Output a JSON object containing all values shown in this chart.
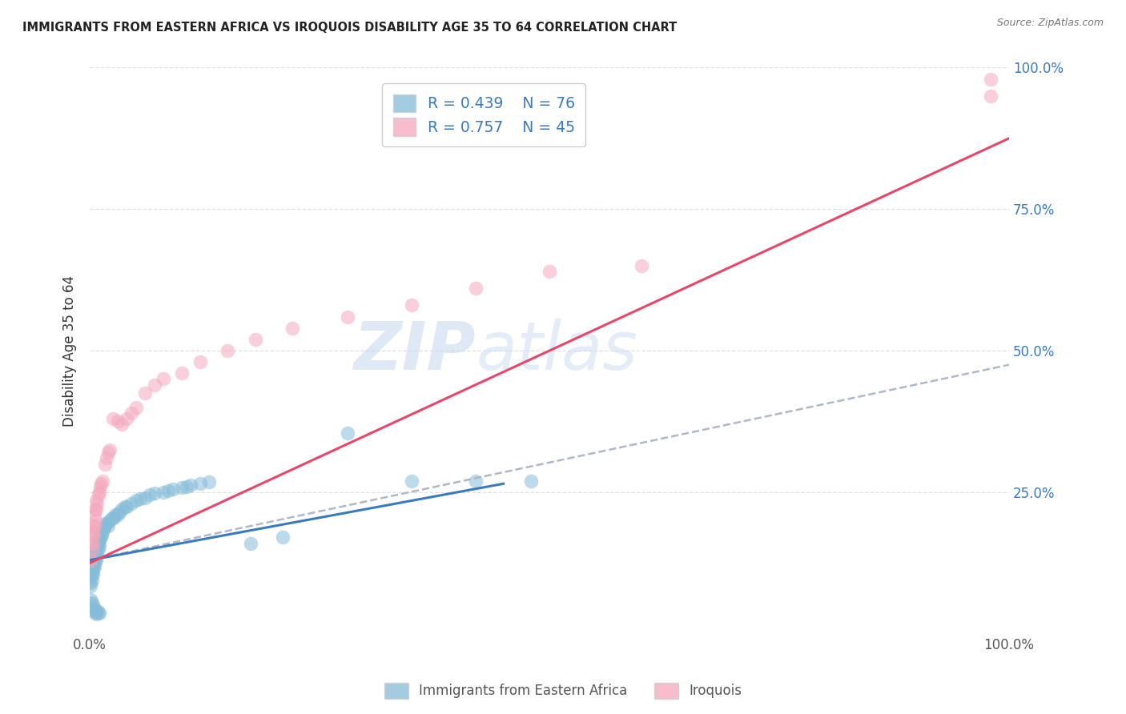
{
  "title": "IMMIGRANTS FROM EASTERN AFRICA VS IROQUOIS DISABILITY AGE 35 TO 64 CORRELATION CHART",
  "source": "Source: ZipAtlas.com",
  "ylabel": "Disability Age 35 to 64",
  "xlim": [
    0,
    1
  ],
  "ylim": [
    0,
    1
  ],
  "legend_blue_label": "Immigrants from Eastern Africa",
  "legend_pink_label": "Iroquois",
  "blue_color": "#85bcd8",
  "pink_color": "#f4a8bc",
  "blue_trend_color": "#3a7abf",
  "pink_trend_color": "#e8476a",
  "dashed_trend_color": "#b0b8c8",
  "text_color_blue": "#3a7abf",
  "text_color_dark": "#333333",
  "background_color": "#ffffff",
  "grid_color": "#dddddd",
  "blue_trend_x": [
    0.0,
    0.45
  ],
  "blue_trend_y": [
    0.13,
    0.265
  ],
  "pink_trend_x": [
    0.0,
    1.0
  ],
  "pink_trend_y": [
    0.125,
    0.875
  ],
  "dashed_trend_x": [
    0.0,
    1.0
  ],
  "dashed_trend_y": [
    0.13,
    0.475
  ],
  "blue_scatter_x": [
    0.001,
    0.001,
    0.001,
    0.002,
    0.002,
    0.002,
    0.002,
    0.003,
    0.003,
    0.003,
    0.003,
    0.004,
    0.004,
    0.004,
    0.005,
    0.005,
    0.005,
    0.006,
    0.006,
    0.007,
    0.007,
    0.007,
    0.008,
    0.008,
    0.009,
    0.009,
    0.01,
    0.01,
    0.011,
    0.012,
    0.013,
    0.014,
    0.015,
    0.016,
    0.017,
    0.018,
    0.02,
    0.022,
    0.024,
    0.026,
    0.028,
    0.03,
    0.032,
    0.035,
    0.038,
    0.04,
    0.045,
    0.05,
    0.055,
    0.06,
    0.065,
    0.07,
    0.08,
    0.085,
    0.09,
    0.1,
    0.105,
    0.11,
    0.12,
    0.13,
    0.001,
    0.002,
    0.003,
    0.004,
    0.005,
    0.006,
    0.007,
    0.008,
    0.009,
    0.01,
    0.175,
    0.21,
    0.28,
    0.35,
    0.42,
    0.48
  ],
  "blue_scatter_y": [
    0.085,
    0.09,
    0.1,
    0.11,
    0.12,
    0.095,
    0.105,
    0.12,
    0.13,
    0.14,
    0.105,
    0.13,
    0.115,
    0.125,
    0.135,
    0.14,
    0.12,
    0.14,
    0.13,
    0.145,
    0.15,
    0.13,
    0.14,
    0.155,
    0.15,
    0.16,
    0.165,
    0.155,
    0.17,
    0.17,
    0.175,
    0.18,
    0.185,
    0.19,
    0.195,
    0.195,
    0.19,
    0.2,
    0.205,
    0.205,
    0.21,
    0.21,
    0.215,
    0.22,
    0.225,
    0.225,
    0.23,
    0.235,
    0.238,
    0.24,
    0.245,
    0.248,
    0.25,
    0.252,
    0.255,
    0.258,
    0.26,
    0.262,
    0.265,
    0.268,
    0.06,
    0.055,
    0.05,
    0.045,
    0.04,
    0.038,
    0.035,
    0.04,
    0.038,
    0.036,
    0.16,
    0.17,
    0.355,
    0.27,
    0.27,
    0.27
  ],
  "pink_scatter_x": [
    0.001,
    0.001,
    0.002,
    0.002,
    0.003,
    0.003,
    0.004,
    0.004,
    0.005,
    0.005,
    0.006,
    0.006,
    0.007,
    0.007,
    0.008,
    0.009,
    0.01,
    0.011,
    0.012,
    0.014,
    0.016,
    0.018,
    0.02,
    0.022,
    0.025,
    0.03,
    0.035,
    0.04,
    0.045,
    0.05,
    0.06,
    0.07,
    0.08,
    0.1,
    0.12,
    0.15,
    0.18,
    0.22,
    0.28,
    0.35,
    0.42,
    0.5,
    0.6,
    0.98,
    0.98
  ],
  "pink_scatter_y": [
    0.13,
    0.16,
    0.15,
    0.175,
    0.16,
    0.18,
    0.175,
    0.19,
    0.19,
    0.21,
    0.2,
    0.22,
    0.22,
    0.235,
    0.23,
    0.245,
    0.25,
    0.26,
    0.265,
    0.27,
    0.3,
    0.31,
    0.32,
    0.325,
    0.38,
    0.375,
    0.37,
    0.38,
    0.39,
    0.4,
    0.425,
    0.44,
    0.45,
    0.46,
    0.48,
    0.5,
    0.52,
    0.54,
    0.56,
    0.58,
    0.61,
    0.64,
    0.65,
    0.98,
    0.95
  ]
}
